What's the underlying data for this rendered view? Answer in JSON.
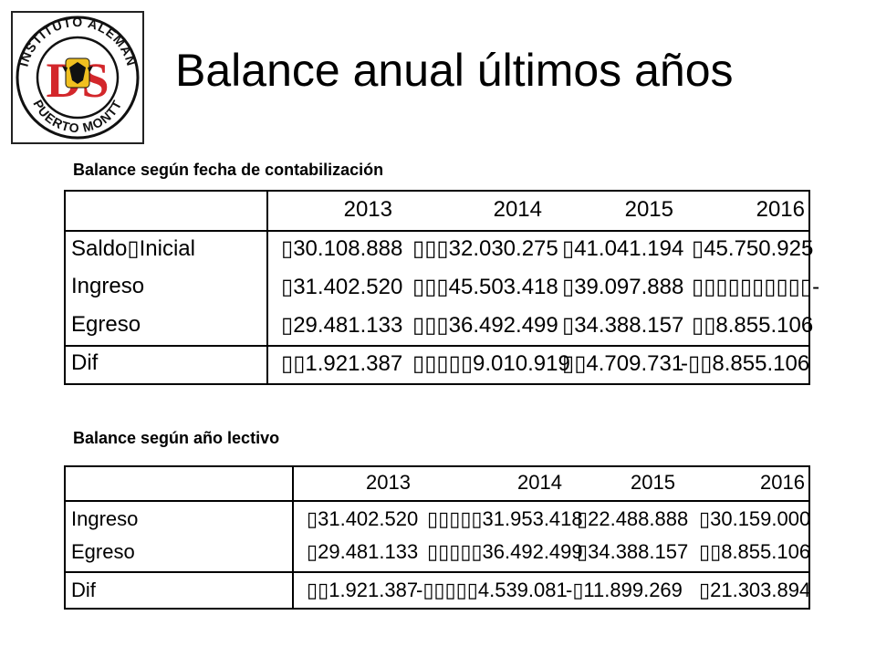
{
  "header": {
    "logo_text_top": "INSTITUTO ALEMAN",
    "logo_text_bottom": "PUERTO MONTT",
    "logo_monogram": "DS",
    "title": "Balance anual últimos años"
  },
  "table1": {
    "caption": "Balance según fecha de contabilización",
    "years": [
      "2013",
      "2014",
      "2015",
      "2016"
    ],
    "rows": [
      {
        "label": "Saldo▯Inicial",
        "values": [
          "▯30.108.888",
          "▯▯▯32.030.275",
          "▯41.041.194",
          "▯45.750.925"
        ]
      },
      {
        "label": "Ingreso",
        "values": [
          "▯31.402.520",
          "▯▯▯45.503.418",
          "▯39.097.888",
          "▯▯▯▯▯▯▯▯▯▯-"
        ]
      },
      {
        "label": "Egreso",
        "values": [
          "▯29.481.133",
          "▯▯▯36.492.499",
          "▯34.388.157",
          "▯▯8.855.106"
        ]
      },
      {
        "label": "Dif",
        "values": [
          "▯▯1.921.387",
          "▯▯▯▯▯9.010.919",
          "▯▯4.709.731",
          "-▯▯8.855.106"
        ]
      }
    ]
  },
  "table2": {
    "caption": "Balance según año lectivo",
    "years": [
      "2013",
      "2014",
      "2015",
      "2016"
    ],
    "rows": [
      {
        "label": "Ingreso",
        "values": [
          "▯31.402.520",
          "▯▯▯▯▯31.953.418",
          "▯22.488.888",
          "▯30.159.000"
        ]
      },
      {
        "label": "Egreso",
        "values": [
          "▯29.481.133",
          "▯▯▯▯▯36.492.499",
          "▯34.388.157",
          "▯▯8.855.106"
        ]
      },
      {
        "label": "Dif",
        "values": [
          "▯▯1.921.387",
          "-▯▯▯▯▯4.539.081",
          "-▯11.899.269",
          "▯21.303.894"
        ]
      }
    ]
  }
}
